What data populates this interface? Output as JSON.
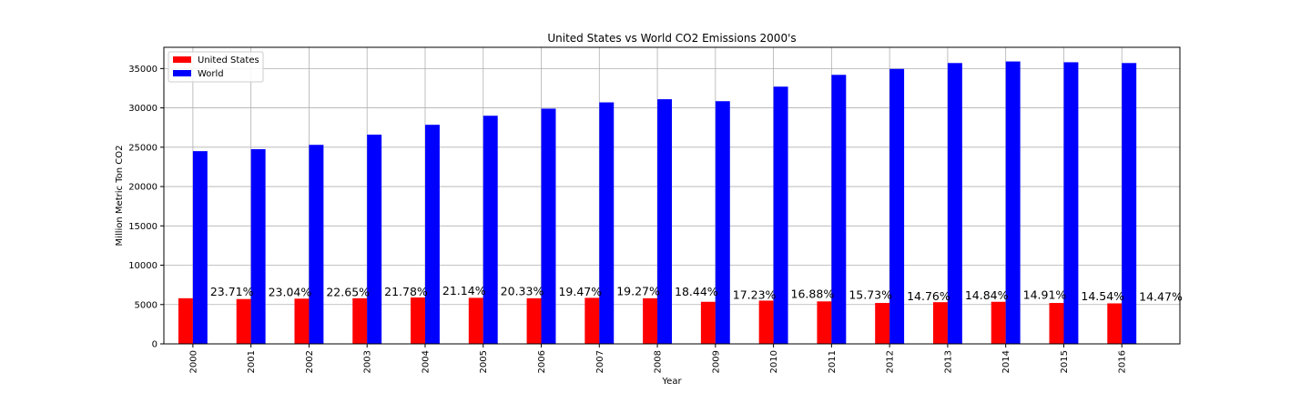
{
  "chart_data": {
    "type": "bar",
    "title": "United States vs World CO2 Emissions 2000's",
    "xlabel": "Year",
    "ylabel": "Million Metric Ton CO2",
    "ylim": [
      0,
      37700
    ],
    "yticks": [
      0,
      5000,
      10000,
      15000,
      20000,
      25000,
      30000,
      35000
    ],
    "categories": [
      "2000",
      "2001",
      "2002",
      "2003",
      "2004",
      "2005",
      "2006",
      "2007",
      "2008",
      "2009",
      "2010",
      "2011",
      "2012",
      "2013",
      "2014",
      "2015",
      "2016"
    ],
    "series": [
      {
        "name": "United States",
        "color": "#ff0000",
        "values": [
          5800,
          5700,
          5750,
          5800,
          5900,
          5850,
          5800,
          5850,
          5800,
          5350,
          5500,
          5400,
          5200,
          5300,
          5350,
          5200,
          5150
        ]
      },
      {
        "name": "World",
        "color": "#0000ff",
        "values": [
          24500,
          24750,
          25300,
          26600,
          27850,
          29000,
          29900,
          30700,
          31100,
          30850,
          32700,
          34200,
          34950,
          35700,
          35900,
          35800,
          35700
        ]
      }
    ],
    "annotations": [
      "23.71%",
      "23.04%",
      "22.65%",
      "21.78%",
      "21.14%",
      "20.33%",
      "19.47%",
      "19.27%",
      "18.44%",
      "17.23%",
      "16.88%",
      "15.73%",
      "14.76%",
      "14.84%",
      "14.91%",
      "14.54%",
      "14.47%"
    ],
    "grid": true,
    "legend_position": "top-left"
  }
}
